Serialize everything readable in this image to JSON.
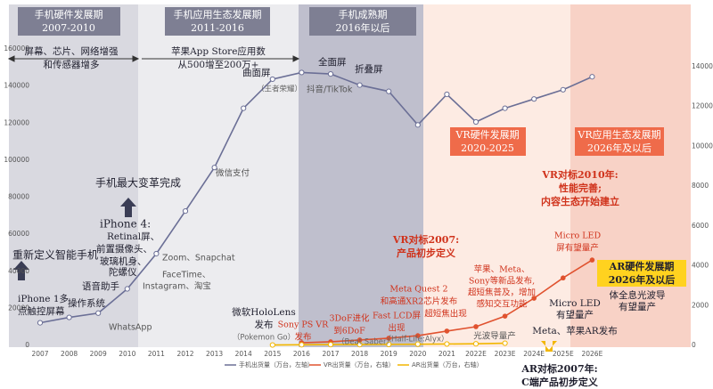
{
  "chart_data": {
    "type": "line",
    "categories": [
      "2007",
      "2008",
      "2009",
      "2010",
      "2011",
      "2012",
      "2013",
      "2014",
      "2015",
      "2016",
      "2017",
      "2018",
      "2019",
      "2020",
      "2021",
      "2022E",
      "2023E",
      "2024E",
      "2025E",
      "2026E"
    ],
    "series": [
      {
        "name": "手机出货量（万台，左轴）",
        "color": "#6b6f96",
        "axis": "y",
        "values": [
          12200,
          15100,
          17400,
          30500,
          49500,
          72500,
          96000,
          128000,
          143700,
          147300,
          146500,
          140500,
          137100,
          119000,
          135500,
          120600,
          128000,
          133000,
          138000,
          145000
        ]
      },
      {
        "name": "VR出货量（万台，右轴）",
        "color": "#e0522f",
        "axis": "y2",
        "values": [
          null,
          null,
          null,
          null,
          null,
          null,
          null,
          null,
          null,
          130,
          180,
          270,
          360,
          490,
          720,
          940,
          1470,
          2370,
          3390,
          4290
        ]
      },
      {
        "name": "AR出货量（万台，右轴）",
        "color": "#f2b600",
        "axis": "y2",
        "values": [
          null,
          null,
          null,
          null,
          null,
          null,
          null,
          null,
          20,
          30,
          40,
          40,
          50,
          60,
          70,
          80,
          110,
          null,
          null,
          null
        ]
      }
    ],
    "ylim": [
      0,
      160000
    ],
    "yticks": [
      0,
      20000,
      40000,
      60000,
      80000,
      100000,
      120000,
      140000,
      160000
    ],
    "y2lim": [
      0,
      14000
    ],
    "y2ticks": [
      0,
      2000,
      4000,
      6000,
      8000,
      10000,
      12000,
      14000
    ],
    "grid": false,
    "legend": "bottom",
    "phases": [
      {
        "title": "手机硬件发展期",
        "period": "2007-2010"
      },
      {
        "title": "手机应用生态发展期",
        "period": "2011-2016"
      },
      {
        "title": "手机成熟期",
        "period": "2016年以后"
      },
      {
        "title": "VR硬件发展期",
        "period": "2020-2025"
      },
      {
        "title": "VR应用生态发展期",
        "period": "2026年及以后"
      }
    ],
    "annotations": [
      "屏幕、芯片、网络增强",
      "和传感器增多",
      "苹果App Store应用数",
      "从500增至200万+",
      "重新定义智能手机",
      "iPhone 1多",
      "点触控屏幕",
      "操作系统",
      "语音助手",
      "WhatsApp",
      "手机最大变革完成",
      "iPhone 4:",
      "Retinal屏、",
      "前置摄像头、",
      "玻璃机身、",
      "陀螺仪",
      "FaceTime、",
      "Instagram、淘宝",
      "Zoom、Snapchat",
      "微信支付",
      "曲面屏",
      "（王者荣耀）",
      "全面屏",
      "抖音/TikTok",
      "折叠屏",
      "VR对标2007:",
      "产品初步定义",
      "VR对标2010年:",
      "性能完善;",
      "内容生态开始建立",
      "Micro LED",
      "屏有望量产",
      "微软HoloLens",
      "发布",
      "（Pokemon Go）",
      "Sony PS VR",
      "发布",
      "3DoF进化",
      "到6DoF",
      "（Beat Saber）",
      "Fast LCD屏",
      "出现",
      "（Half-Life:Alyx）",
      "Meta Quest 2",
      "和高通XR2芯片发布",
      "超短焦出现",
      "苹果、Meta、",
      "Sony等新品发布,",
      "超短焦普及，增加",
      "感知交互功能",
      "光波导量产",
      "AR硬件发展期",
      "2026年及以后",
      "Micro LED",
      "有望量产",
      "体全息光波导",
      "有望量产",
      "Meta、苹果AR发布",
      "AR对标2007年:",
      "C端产品初步定义"
    ]
  }
}
